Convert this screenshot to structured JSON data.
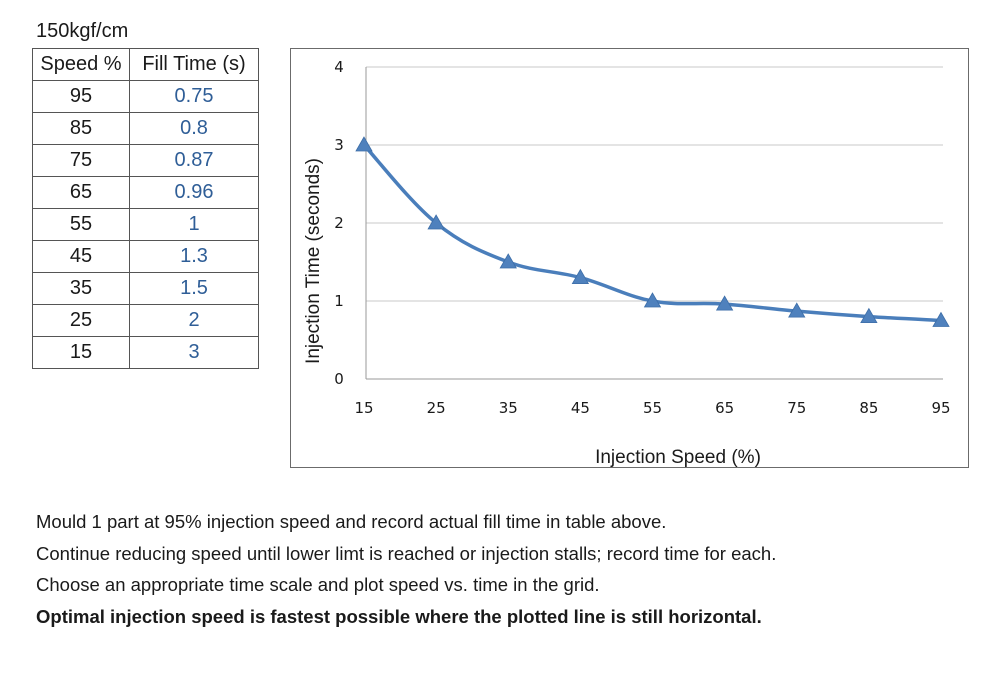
{
  "heading": "150kgf/cm",
  "table": {
    "headers": [
      "Speed %",
      "Fill Time (s)"
    ],
    "rows": [
      {
        "speed": "95",
        "time": "0.75"
      },
      {
        "speed": "85",
        "time": "0.8"
      },
      {
        "speed": "75",
        "time": "0.87"
      },
      {
        "speed": "65",
        "time": "0.96"
      },
      {
        "speed": "55",
        "time": "1"
      },
      {
        "speed": "45",
        "time": "1.3"
      },
      {
        "speed": "35",
        "time": "1.5"
      },
      {
        "speed": "25",
        "time": "2"
      },
      {
        "speed": "15",
        "time": "3"
      }
    ]
  },
  "chart_data": {
    "type": "line",
    "title": "",
    "xlabel": "Injection Speed (%)",
    "ylabel": "Injection Time (seconds)",
    "categories": [
      "15",
      "25",
      "35",
      "45",
      "55",
      "65",
      "75",
      "85",
      "95"
    ],
    "series": [
      {
        "values": [
          3,
          2,
          1.5,
          1.3,
          1,
          0.96,
          0.87,
          0.8,
          0.75
        ]
      }
    ],
    "ylim": [
      0,
      4
    ],
    "yticks": [
      "0",
      "1",
      "2",
      "3",
      "4"
    ],
    "grid": true,
    "marker": "triangle",
    "line_color": "#4a7ebb",
    "marker_color": "#4f81bd",
    "grid_color": "#c9c9c9"
  },
  "instructions": [
    "Mould 1 part at 95% injection speed and record actual fill time in table above.",
    "Continue reducing speed until lower limt is reached or injection stalls; record time for each.",
    "Choose an appropriate time scale and plot speed vs. time in the grid.",
    "Optimal injection speed is fastest possible where the plotted line is still horizontal."
  ]
}
